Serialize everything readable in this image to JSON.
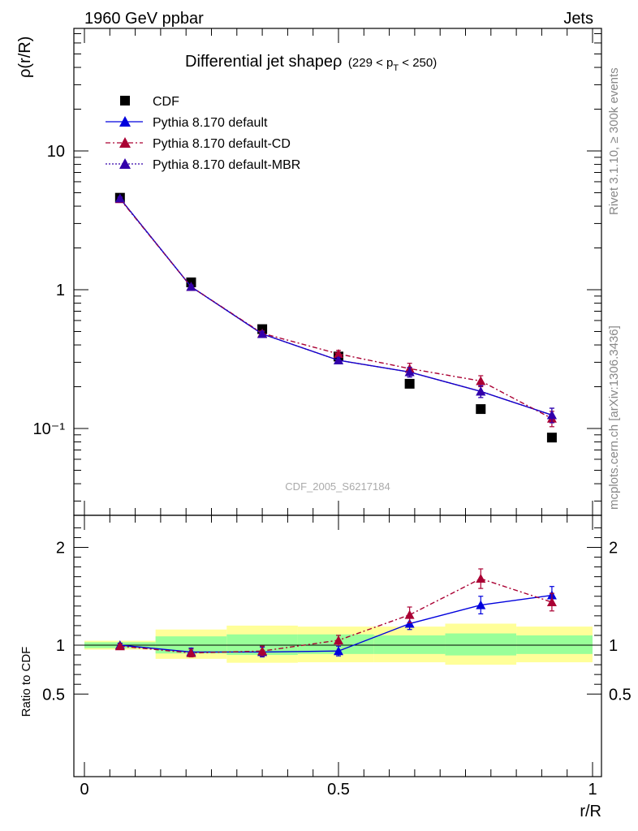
{
  "header": {
    "left": "1960 GeV ppbar",
    "right": "Jets",
    "side_rivet": "Rivet 3.1.10, ≥ 300k events",
    "side_mcplots": "mcplots.cern.ch [arXiv:1306.3436]"
  },
  "chart_data": [
    {
      "type": "line",
      "panel": "main",
      "title": "Differential jet shapeρ",
      "title_range": "(229 < p_T < 250)",
      "ylabel": "ρ(r/R)",
      "ylog": true,
      "ylim": [
        0.027,
        55
      ],
      "xlim": [
        -0.02,
        1.0
      ],
      "yticks": [
        {
          "value": 0.1,
          "label": "10⁻¹"
        },
        {
          "value": 1,
          "label": "1"
        },
        {
          "value": 10,
          "label": "10"
        }
      ],
      "watermark": "CDF_2005_S6217184",
      "legend_position": "top-left",
      "x": [
        0.07,
        0.21,
        0.35,
        0.5,
        0.64,
        0.78,
        0.92
      ],
      "series": [
        {
          "name": "CDF",
          "marker": "square",
          "color": "#000000",
          "values": [
            4.6,
            1.13,
            0.52,
            0.33,
            0.21,
            0.138,
            0.086
          ]
        },
        {
          "name": "Pythia 8.170 default",
          "marker": "triangle",
          "color": "#0000dd",
          "line": "solid",
          "values": [
            4.55,
            1.05,
            0.48,
            0.31,
            0.255,
            0.185,
            0.125
          ],
          "errors": [
            0.1,
            0.03,
            0.02,
            0.015,
            0.02,
            0.018,
            0.015
          ]
        },
        {
          "name": "Pythia 8.170 default-CD",
          "marker": "triangle",
          "color": "#aa0033",
          "line": "dashdot",
          "values": [
            4.5,
            1.05,
            0.485,
            0.345,
            0.27,
            0.22,
            0.118
          ],
          "errors": [
            0.1,
            0.03,
            0.02,
            0.02,
            0.025,
            0.02,
            0.015
          ]
        },
        {
          "name": "Pythia 8.170 default-MBR",
          "marker": "triangle",
          "color": "#3300aa",
          "line": "dotted",
          "values": [
            4.55,
            1.05,
            0.48,
            0.31,
            0.255,
            0.185,
            0.125
          ],
          "errors": [
            0.1,
            0.03,
            0.02,
            0.015,
            0.02,
            0.018,
            0.015
          ]
        }
      ]
    },
    {
      "type": "line",
      "panel": "ratio",
      "ylabel": "Ratio to CDF",
      "xlabel": "r/R",
      "ylim": [
        0.42,
        2.35
      ],
      "xlim": [
        -0.02,
        1.0
      ],
      "yticks": [
        {
          "value": 0.5,
          "label": "0.5"
        },
        {
          "value": 1,
          "label": "1"
        },
        {
          "value": 2,
          "label": "2"
        }
      ],
      "xticks": [
        {
          "value": 0,
          "label": "0"
        },
        {
          "value": 0.5,
          "label": "0.5"
        },
        {
          "value": 1,
          "label": "1"
        }
      ],
      "bands": [
        {
          "x0": 0.0,
          "x1": 0.14,
          "yellow": [
            0.955,
            1.045
          ],
          "green": [
            0.97,
            1.03
          ]
        },
        {
          "x0": 0.14,
          "x1": 0.28,
          "yellow": [
            0.86,
            1.16
          ],
          "green": [
            0.915,
            1.09
          ]
        },
        {
          "x0": 0.28,
          "x1": 0.42,
          "yellow": [
            0.82,
            1.2
          ],
          "green": [
            0.9,
            1.11
          ]
        },
        {
          "x0": 0.42,
          "x1": 0.57,
          "yellow": [
            0.825,
            1.19
          ],
          "green": [
            0.91,
            1.11
          ]
        },
        {
          "x0": 0.57,
          "x1": 0.71,
          "yellow": [
            0.825,
            1.19
          ],
          "green": [
            0.91,
            1.1
          ]
        },
        {
          "x0": 0.71,
          "x1": 0.85,
          "yellow": [
            0.8,
            1.22
          ],
          "green": [
            0.895,
            1.12
          ]
        },
        {
          "x0": 0.85,
          "x1": 1.0,
          "yellow": [
            0.825,
            1.19
          ],
          "green": [
            0.91,
            1.1
          ]
        }
      ],
      "x": [
        0.07,
        0.21,
        0.35,
        0.5,
        0.64,
        0.78,
        0.92
      ],
      "series": [
        {
          "name": "Pythia 8.170 default",
          "color": "#0000dd",
          "line": "solid",
          "values": [
            1.0,
            0.93,
            0.93,
            0.94,
            1.22,
            1.41,
            1.51
          ],
          "errors": [
            0.02,
            0.04,
            0.05,
            0.05,
            0.06,
            0.09,
            0.09
          ]
        },
        {
          "name": "Pythia 8.170 default-CD",
          "color": "#aa0033",
          "line": "dashdot",
          "values": [
            0.99,
            0.92,
            0.94,
            1.05,
            1.31,
            1.68,
            1.44
          ],
          "errors": [
            0.02,
            0.04,
            0.05,
            0.05,
            0.08,
            0.1,
            0.09
          ]
        }
      ]
    }
  ]
}
